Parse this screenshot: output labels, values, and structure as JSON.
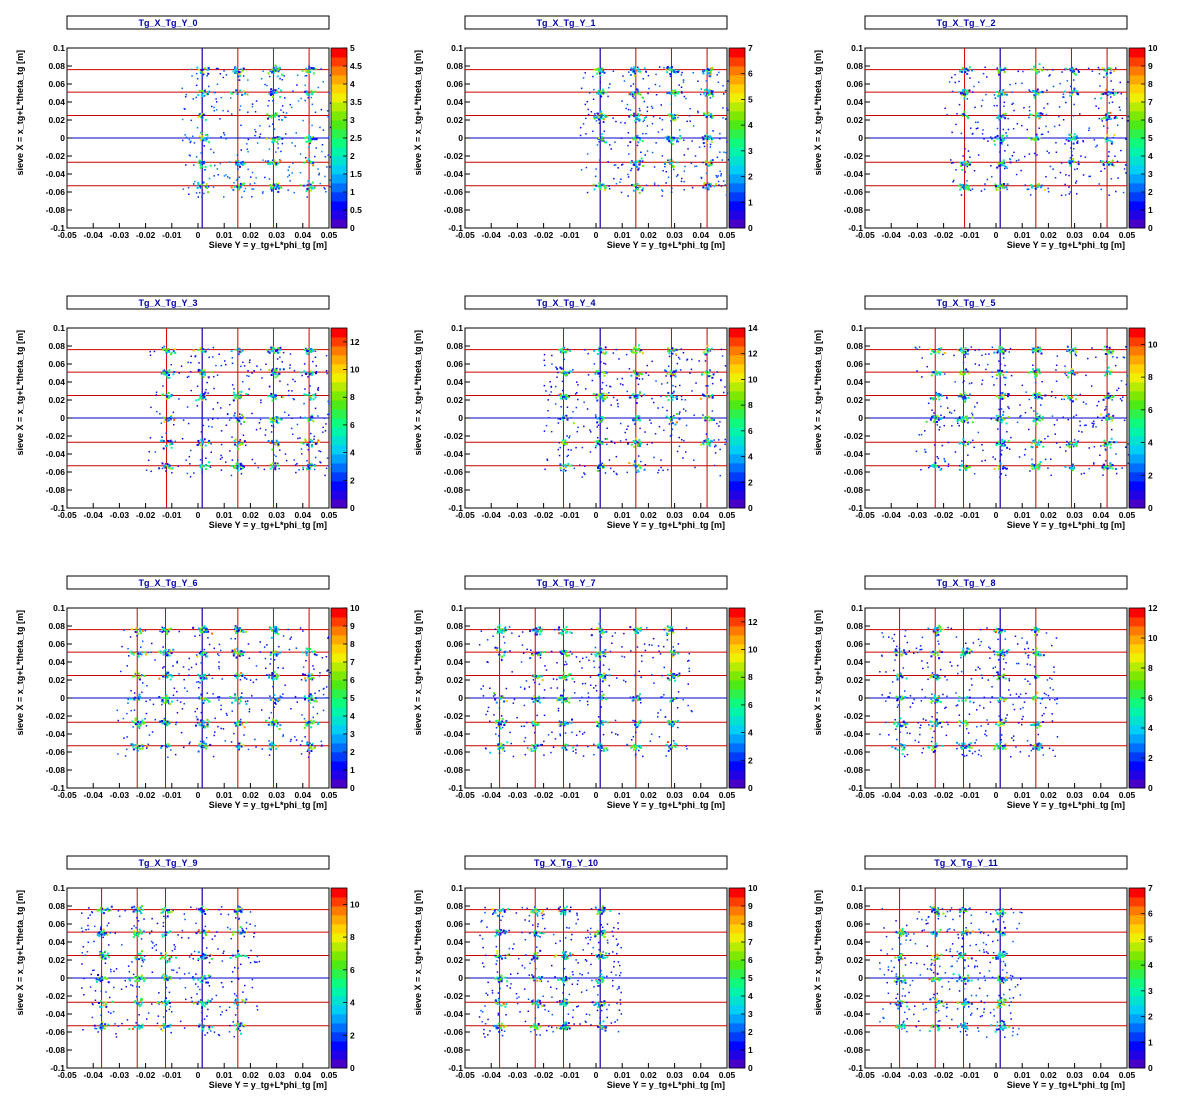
{
  "common": {
    "xlabel": "Sieve Y = y_tg+L*phi_tg [m]",
    "ylabel": "sieve X = x_tg+L*theta_tg [m]",
    "xlim": [
      -0.05,
      0.05
    ],
    "ylim": [
      -0.1,
      0.1
    ],
    "x_ticks": [
      "-0.05",
      "-0.04",
      "-0.03",
      "-0.02",
      "-0.01",
      "0",
      "0.01",
      "0.02",
      "0.03",
      "0.04",
      "0.05"
    ],
    "y_ticks": [
      "-0.1",
      "-0.08",
      "-0.06",
      "-0.04",
      "-0.02",
      "0",
      "0.02",
      "0.04",
      "0.06",
      "0.08",
      "0.1"
    ],
    "colors": {
      "axis_line": "#0000cc",
      "sieve_grid": "#cc0000",
      "title_text": "#0000aa"
    }
  },
  "chart_data": [
    {
      "type": "heatmap",
      "title": "Tg_X_Tg_Y_0",
      "zlim": [
        0,
        5
      ],
      "z_ticks": [
        "0",
        "0.5",
        "1",
        "1.5",
        "2",
        "2.5",
        "3",
        "3.5",
        "4",
        "4.5",
        "5"
      ],
      "sieve_y": [
        0.0016,
        0.0152,
        0.0288,
        0.0424
      ],
      "sieve_x": [
        0.076,
        0.051,
        0.025,
        0,
        -0.027,
        -0.053
      ]
    },
    {
      "type": "heatmap",
      "title": "Tg_X_Tg_Y_1",
      "zlim": [
        0,
        7
      ],
      "z_ticks": [
        "0",
        "1",
        "2",
        "3",
        "4",
        "5",
        "6",
        "7"
      ],
      "sieve_y": [
        0.0016,
        0.0152,
        0.0288,
        0.0424
      ],
      "sieve_x": [
        0.076,
        0.051,
        0.025,
        0,
        -0.027,
        -0.053
      ]
    },
    {
      "type": "heatmap",
      "title": "Tg_X_Tg_Y_2",
      "zlim": [
        0,
        10
      ],
      "z_ticks": [
        "0",
        "1",
        "2",
        "3",
        "4",
        "5",
        "6",
        "7",
        "8",
        "9",
        "10"
      ],
      "sieve_y": [
        -0.012,
        0.0016,
        0.0152,
        0.0288,
        0.0424
      ],
      "sieve_x": [
        0.076,
        0.051,
        0.025,
        0,
        -0.027,
        -0.053
      ]
    },
    {
      "type": "heatmap",
      "title": "Tg_X_Tg_Y_3",
      "zlim": [
        0,
        13
      ],
      "z_ticks": [
        "0",
        "2",
        "4",
        "6",
        "8",
        "10",
        "12"
      ],
      "sieve_y": [
        -0.012,
        0.0016,
        0.0152,
        0.0288,
        0.0424
      ],
      "sieve_x": [
        0.076,
        0.051,
        0.025,
        0,
        -0.027,
        -0.053
      ]
    },
    {
      "type": "heatmap",
      "title": "Tg_X_Tg_Y_4",
      "zlim": [
        0,
        14
      ],
      "z_ticks": [
        "0",
        "2",
        "4",
        "6",
        "8",
        "10",
        "12",
        "14"
      ],
      "sieve_y": [
        -0.0124,
        0.0016,
        0.0152,
        0.0288,
        0.0424
      ],
      "sieve_x": [
        0.076,
        0.051,
        0.025,
        0,
        -0.027,
        -0.053
      ]
    },
    {
      "type": "heatmap",
      "title": "Tg_X_Tg_Y_5",
      "zlim": [
        0,
        11
      ],
      "z_ticks": [
        "0",
        "2",
        "4",
        "6",
        "8",
        "10"
      ],
      "sieve_y": [
        -0.0232,
        -0.0124,
        0.0016,
        0.0152,
        0.0288,
        0.0424
      ],
      "sieve_x": [
        0.076,
        0.051,
        0.025,
        0,
        -0.027,
        -0.053
      ]
    },
    {
      "type": "heatmap",
      "title": "Tg_X_Tg_Y_6",
      "zlim": [
        0,
        10
      ],
      "z_ticks": [
        "0",
        "1",
        "2",
        "3",
        "4",
        "5",
        "6",
        "7",
        "8",
        "9",
        "10"
      ],
      "sieve_y": [
        -0.0232,
        -0.0124,
        0.0016,
        0.0152,
        0.0288,
        0.0424
      ],
      "sieve_x": [
        0.076,
        0.051,
        0.025,
        0,
        -0.027,
        -0.053
      ]
    },
    {
      "type": "heatmap",
      "title": "Tg_X_Tg_Y_7",
      "zlim": [
        0,
        13
      ],
      "z_ticks": [
        "0",
        "2",
        "4",
        "6",
        "8",
        "10",
        "12"
      ],
      "sieve_y": [
        -0.0368,
        -0.0232,
        -0.0124,
        0.0016,
        0.0152,
        0.0288
      ],
      "sieve_x": [
        0.076,
        0.051,
        0.025,
        0,
        -0.027,
        -0.053
      ]
    },
    {
      "type": "heatmap",
      "title": "Tg_X_Tg_Y_8",
      "zlim": [
        0,
        12
      ],
      "z_ticks": [
        "0",
        "2",
        "4",
        "6",
        "8",
        "10",
        "12"
      ],
      "sieve_y": [
        -0.0368,
        -0.0232,
        -0.0124,
        0.0016,
        0.0152
      ],
      "sieve_x": [
        0.076,
        0.051,
        0.025,
        0,
        -0.027,
        -0.053
      ]
    },
    {
      "type": "heatmap",
      "title": "Tg_X_Tg_Y_9",
      "zlim": [
        0,
        11
      ],
      "z_ticks": [
        "0",
        "2",
        "4",
        "6",
        "8",
        "10"
      ],
      "sieve_y": [
        -0.0368,
        -0.0232,
        -0.0124,
        0.0016,
        0.0152
      ],
      "sieve_x": [
        0.076,
        0.051,
        0.025,
        0,
        -0.027,
        -0.053
      ]
    },
    {
      "type": "heatmap",
      "title": "Tg_X_Tg_Y_10",
      "zlim": [
        0,
        10
      ],
      "z_ticks": [
        "0",
        "1",
        "2",
        "3",
        "4",
        "5",
        "6",
        "7",
        "8",
        "9",
        "10"
      ],
      "sieve_y": [
        -0.0368,
        -0.0232,
        -0.0124,
        0.0016
      ],
      "sieve_x": [
        0.076,
        0.051,
        0.025,
        0,
        -0.027,
        -0.053
      ]
    },
    {
      "type": "heatmap",
      "title": "Tg_X_Tg_Y_11",
      "zlim": [
        0,
        7
      ],
      "z_ticks": [
        "0",
        "1",
        "2",
        "3",
        "4",
        "5",
        "6",
        "7"
      ],
      "sieve_y": [
        -0.0368,
        -0.0232,
        -0.0124,
        0.0016
      ],
      "sieve_x": [
        0.076,
        0.051,
        0.025,
        0,
        -0.027,
        -0.053
      ]
    }
  ]
}
